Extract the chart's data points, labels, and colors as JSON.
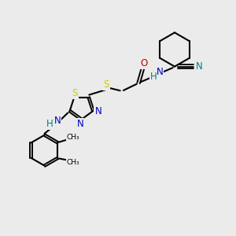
{
  "background_color": "#ebebeb",
  "black": "#000000",
  "blue": "#0000cc",
  "red": "#cc0000",
  "yellow": "#cccc00",
  "teal": "#008080",
  "lw": 1.5,
  "fs": 8.5,
  "xlim": [
    0,
    10
  ],
  "ylim": [
    0,
    10
  ]
}
